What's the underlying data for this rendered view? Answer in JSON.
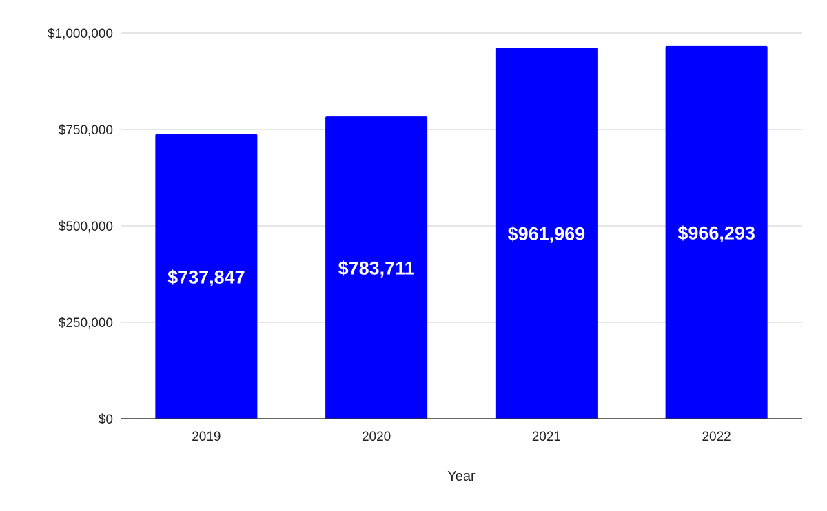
{
  "chart_data": {
    "type": "bar",
    "title": "",
    "xlabel": "Year",
    "ylabel": "",
    "categories": [
      "2019",
      "2020",
      "2021",
      "2022"
    ],
    "values": [
      737847,
      783711,
      961969,
      966293
    ],
    "data_labels": [
      "$737,847",
      "$783,711",
      "$961,969",
      "$966,293"
    ],
    "ylim": [
      0,
      1000000
    ],
    "y_ticks": [
      0,
      250000,
      500000,
      750000,
      1000000
    ],
    "y_tick_labels": [
      "$0",
      "$250,000",
      "$500,000",
      "$750,000",
      "$1,000,000"
    ],
    "grid": true,
    "legend": "none",
    "bar_color": "#0000ff",
    "data_label_color": "#ffffff",
    "gridline_color": "#cccccc",
    "baseline_color": "#333333"
  }
}
